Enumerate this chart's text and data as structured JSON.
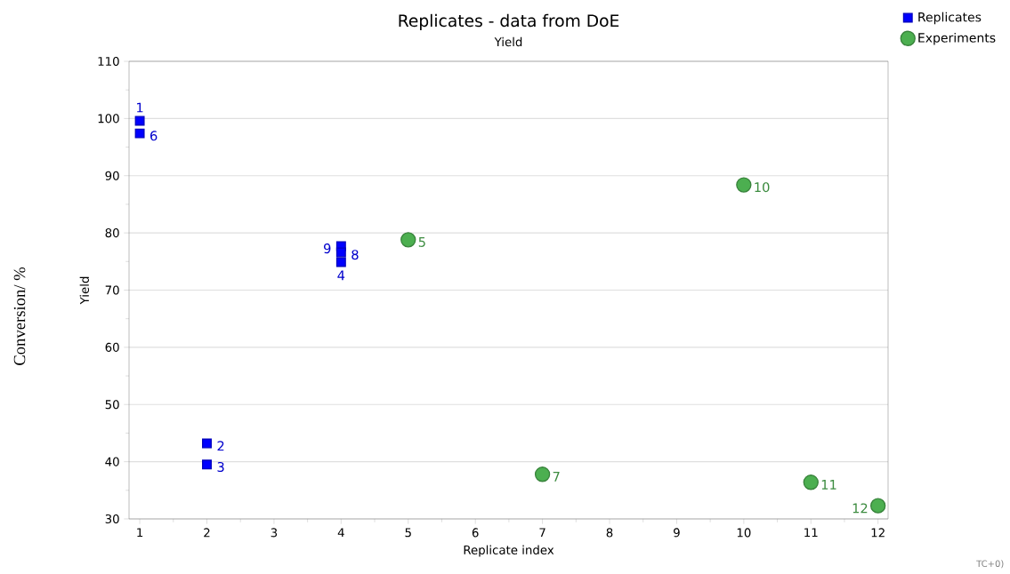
{
  "chart_data": {
    "type": "scatter",
    "title": "Replicates - data from DoE",
    "subtitle": "Yield",
    "xlabel": "Replicate index",
    "ylabel": "Yield",
    "xlim": [
      0.84,
      12.15
    ],
    "xticks": [
      1,
      2,
      3,
      4,
      5,
      6,
      7,
      8,
      9,
      10,
      11,
      12
    ],
    "ylim": [
      30,
      110
    ],
    "yticks": [
      30,
      40,
      50,
      60,
      70,
      80,
      90,
      100,
      110
    ],
    "grid": "y",
    "legend": "top right",
    "series": [
      {
        "name": "Replicates",
        "color": "#0000ff",
        "marker": "square",
        "x": [
          1,
          1,
          2,
          2,
          4,
          4,
          4
        ],
        "values": [
          99.6,
          97.4,
          43.2,
          39.5,
          77.7,
          76.6,
          74.9
        ]
      },
      {
        "name": "Experiments",
        "color": "#4caf50",
        "marker": "circle",
        "x": [
          5,
          7,
          10,
          11,
          12
        ],
        "values": [
          78.8,
          37.8,
          88.4,
          36.4,
          32.3
        ]
      }
    ],
    "annotations": [
      {
        "text": "1",
        "x": 1,
        "y": 99.6
      },
      {
        "text": "6",
        "x": 1,
        "y": 97.4
      },
      {
        "text": "2",
        "x": 2,
        "y": 43.2
      },
      {
        "text": "3",
        "x": 2,
        "y": 39.5
      },
      {
        "text": "9",
        "x": 4,
        "y": 77.7
      },
      {
        "text": "8",
        "x": 4,
        "y": 76.6
      },
      {
        "text": "4",
        "x": 4,
        "y": 74.9
      },
      {
        "text": "5",
        "x": 5,
        "y": 78.8
      },
      {
        "text": "7",
        "x": 7,
        "y": 37.8
      },
      {
        "text": "10",
        "x": 10,
        "y": 88.4
      },
      {
        "text": "11",
        "x": 11,
        "y": 36.4
      },
      {
        "text": "12",
        "x": 12,
        "y": 32.3
      },
      "Conversion/ %",
      "TC+0)"
    ]
  }
}
